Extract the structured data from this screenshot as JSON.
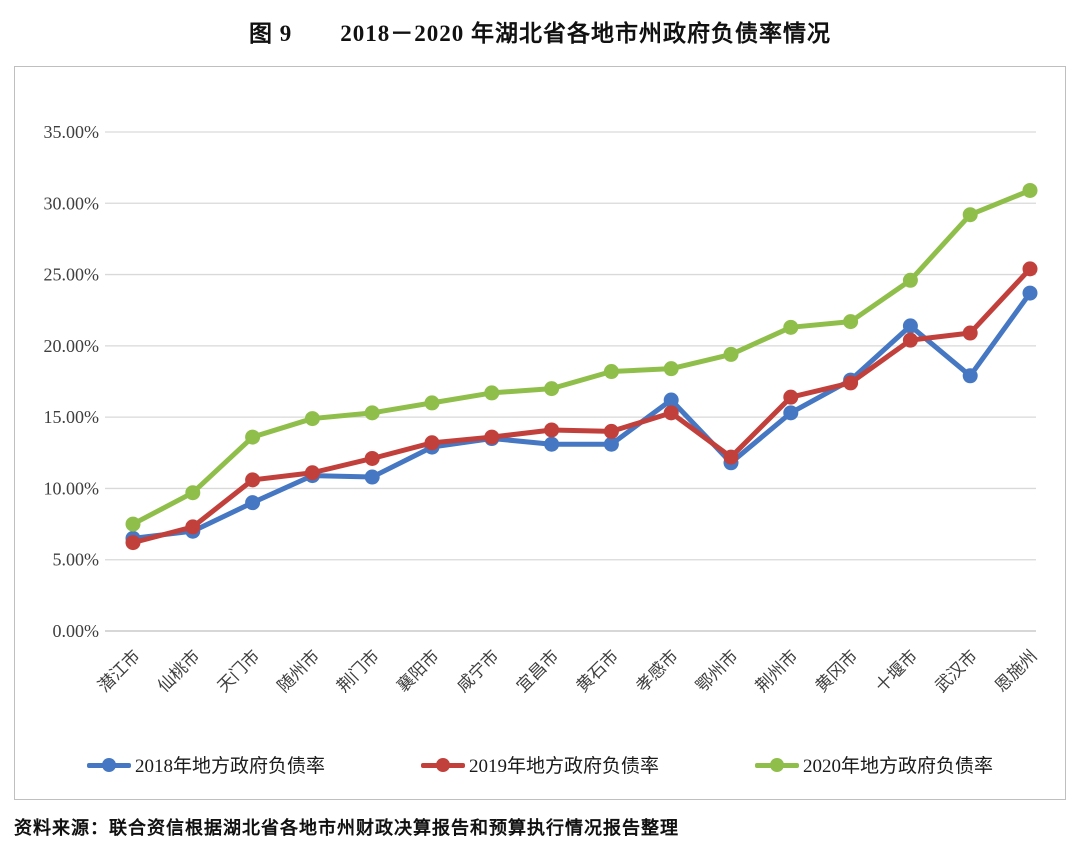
{
  "title": "图 9　　2018－2020 年湖北省各地市州政府负债率情况",
  "source": "资料来源：联合资信根据湖北省各地市州财政决算报告和预算执行情况报告整理",
  "colors": {
    "s2018": "#4577c3",
    "s2019": "#c2403b",
    "s2020": "#8fbf4a",
    "grid": "#d9d9d9",
    "axis": "#bfbfbf",
    "tick_text": "#3f3f3f"
  },
  "chart_data": {
    "type": "line",
    "title": "图 9 2018－2020 年湖北省各地市州政府负债率情况",
    "categories": [
      "潜江市",
      "仙桃市",
      "天门市",
      "随州市",
      "荆门市",
      "襄阳市",
      "咸宁市",
      "宜昌市",
      "黄石市",
      "孝感市",
      "鄂州市",
      "荆州市",
      "黄冈市",
      "十堰市",
      "武汉市",
      "恩施州"
    ],
    "series": [
      {
        "name": "2018年地方政府负债率",
        "color_key": "s2018",
        "values": [
          6.5,
          7.0,
          9.0,
          10.9,
          10.8,
          12.9,
          13.5,
          13.1,
          13.1,
          16.2,
          11.8,
          15.3,
          17.6,
          21.4,
          17.9,
          23.7
        ]
      },
      {
        "name": "2019年地方政府负债率",
        "color_key": "s2019",
        "values": [
          6.2,
          7.3,
          10.6,
          11.1,
          12.1,
          13.2,
          13.6,
          14.1,
          14.0,
          15.3,
          12.2,
          16.4,
          17.4,
          20.4,
          20.9,
          25.4
        ]
      },
      {
        "name": "2020年地方政府负债率",
        "color_key": "s2020",
        "values": [
          7.5,
          9.7,
          13.6,
          14.9,
          15.3,
          16.0,
          16.7,
          17.0,
          18.2,
          18.4,
          19.4,
          21.3,
          21.7,
          24.6,
          29.2,
          30.9
        ]
      }
    ],
    "xlabel": "",
    "ylabel": "",
    "ylim": [
      0,
      35
    ],
    "ytick_step": 5,
    "ytick_labels": [
      "0.00%",
      "5.00%",
      "10.00%",
      "15.00%",
      "20.00%",
      "25.00%",
      "30.00%",
      "35.00%"
    ],
    "grid": true,
    "legend_position": "bottom",
    "xlabel_rotation_deg": 45
  }
}
